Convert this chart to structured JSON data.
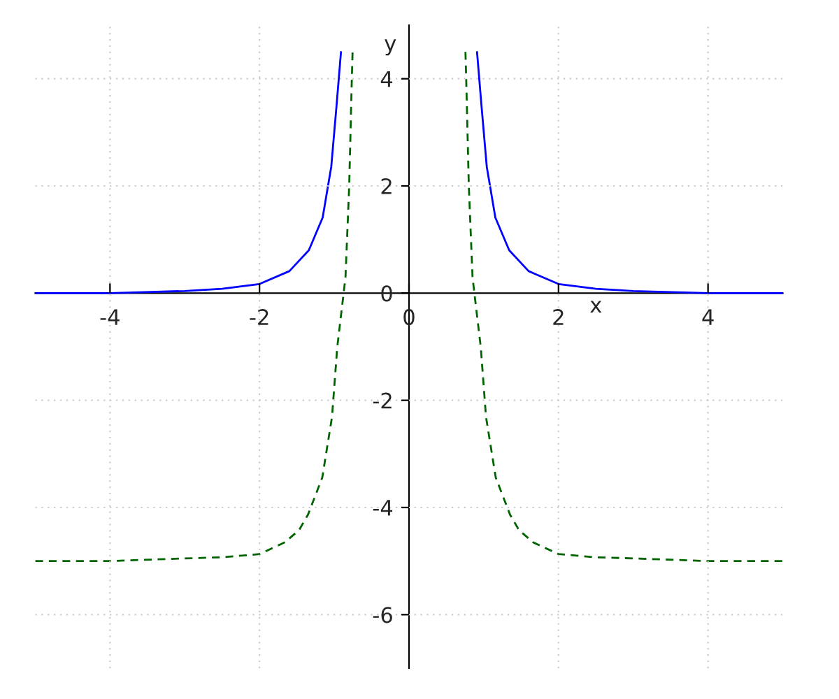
{
  "chart_data": {
    "type": "line",
    "xlabel": "x",
    "ylabel": "y",
    "xlim": [
      -5,
      5
    ],
    "ylim": [
      -7,
      5
    ],
    "xticks": [
      -4,
      -2,
      0,
      2,
      4
    ],
    "yticks": [
      -6,
      -4,
      -2,
      0,
      2,
      4
    ],
    "grid": true,
    "series": [
      {
        "color": "#0000ff",
        "line_style": "solid",
        "x": [
          -5,
          -4,
          -3.75,
          -3,
          -2.5,
          -2,
          -1.6,
          -1.34,
          -1.155,
          -1.04,
          -0.97,
          -0.91,
          0,
          0.91,
          0.97,
          1.04,
          1.155,
          1.34,
          1.6,
          2,
          2.5,
          3,
          3.75,
          4,
          5
        ],
        "values": [
          0,
          0,
          0.01,
          0.04,
          0.08,
          0.17,
          0.41,
          0.8,
          1.41,
          2.36,
          3.49,
          4.5,
          null,
          4.5,
          3.49,
          2.36,
          1.41,
          0.8,
          0.41,
          0.17,
          0.08,
          0.04,
          0.01,
          0,
          0
        ]
      },
      {
        "color": "#006400",
        "line_style": "dashed",
        "x": [
          -5,
          -4,
          -3,
          -2.5,
          -2,
          -1.66,
          -1.47,
          -1.35,
          -1.16,
          -1.03,
          -0.96,
          -0.85,
          -0.8,
          -0.765,
          -0.755,
          0,
          0.755,
          0.765,
          0.8,
          0.85,
          0.96,
          1.03,
          1.16,
          1.35,
          1.47,
          1.66,
          2,
          2.5,
          3,
          4,
          5
        ],
        "values": [
          -5,
          -5,
          -4.95,
          -4.93,
          -4.87,
          -4.65,
          -4.42,
          -4.13,
          -3.44,
          -2.31,
          -1.01,
          0.29,
          2,
          4,
          4.5,
          null,
          4.5,
          4,
          2,
          0.29,
          -1.01,
          -2.31,
          -3.44,
          -4.13,
          -4.42,
          -4.65,
          -4.87,
          -4.93,
          -4.95,
          -5,
          -5
        ]
      }
    ]
  }
}
